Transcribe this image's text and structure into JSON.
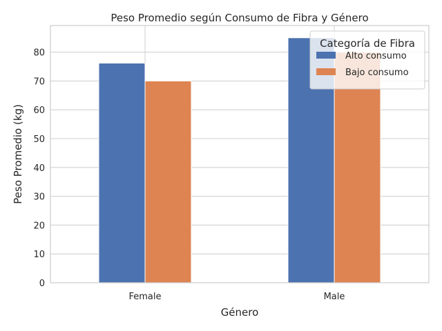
{
  "chart_data": {
    "type": "bar",
    "title": "Peso Promedio según Consumo de Fibra y Género",
    "xlabel": "Género",
    "ylabel": "Peso Promedio (kg)",
    "categories": [
      "Female",
      "Male"
    ],
    "series": [
      {
        "name": "Alto consumo",
        "values": [
          76.2,
          85.0
        ],
        "color": "#4c72b0"
      },
      {
        "name": "Bajo consumo",
        "values": [
          70.0,
          80.0
        ],
        "color": "#dd8452"
      }
    ],
    "ylim": [
      0,
      89.25
    ],
    "yticks": [
      0,
      10,
      20,
      30,
      40,
      50,
      60,
      70,
      80
    ],
    "grid": true,
    "legend": {
      "title": "Categoría de Fibra",
      "placement": "top-right"
    }
  }
}
